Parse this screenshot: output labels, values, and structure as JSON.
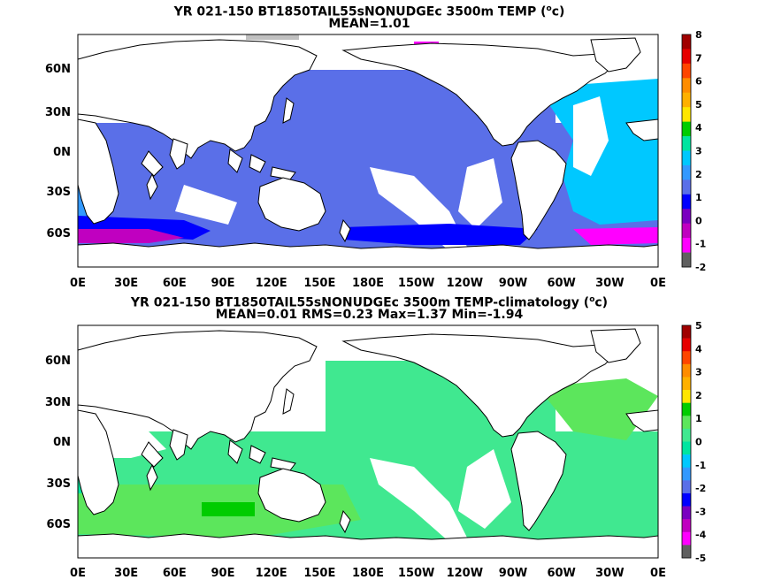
{
  "panels": [
    {
      "title_line1": "YR 021-150 BT1850TAIL55sNONUDGEc 3500m TEMP (",
      "title_sup": "o",
      "title_line1_end": "c)",
      "title_line2": "MEAN=1.01",
      "colorbar": {
        "levels": [
          "8",
          "7",
          "6",
          "5",
          "4",
          "3",
          "2",
          "1",
          "0",
          "-1",
          "-2"
        ],
        "colors": [
          "#a00000",
          "#e60000",
          "#ff4500",
          "#ff8c00",
          "#ffb000",
          "#ffe600",
          "#00cc00",
          "#00e5a0",
          "#00c8ff",
          "#3399ff",
          "#5a6fe8",
          "#0000ff",
          "#7a00c0",
          "#c000c0",
          "#ff00ff",
          "#606060"
        ]
      }
    },
    {
      "title_line1": "YR 021-150 BT1850TAIL55sNONUDGEc 3500m TEMP-climatology (",
      "title_sup": "o",
      "title_line1_end": "c)",
      "title_line2": "MEAN=0.01   RMS=0.23   Max=1.37   Min=-1.94",
      "colorbar": {
        "levels": [
          "5",
          "4",
          "3",
          "2",
          "1",
          "0",
          "-1",
          "-2",
          "-3",
          "-4",
          "-5"
        ],
        "colors": [
          "#a00000",
          "#e60000",
          "#ff4500",
          "#ff8c00",
          "#ffb000",
          "#ffe600",
          "#00cc00",
          "#5ce65c",
          "#40e890",
          "#00e5a0",
          "#00c8ff",
          "#3399ff",
          "#5a6fe8",
          "#0000ff",
          "#7a00c0",
          "#c000c0",
          "#ff00ff",
          "#606060"
        ]
      }
    }
  ],
  "axes": {
    "y_ticks": [
      "60N",
      "30N",
      "0N",
      "30S",
      "60S"
    ],
    "x_ticks": [
      "0E",
      "30E",
      "60E",
      "90E",
      "120E",
      "150E",
      "180E",
      "150W",
      "120W",
      "90W",
      "60W",
      "30W",
      "0E"
    ]
  }
}
